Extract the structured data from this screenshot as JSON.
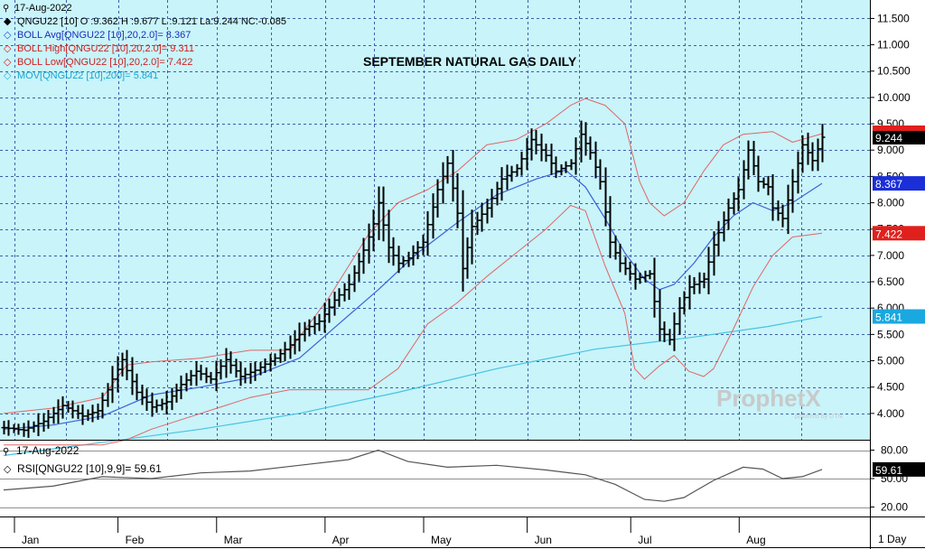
{
  "date_label": "17-Aug-2022",
  "legend": [
    {
      "marker": "◆",
      "marker_color": "#000000",
      "text": "QNGU22 [10] O :9.362 H :9.677 L :9.121 La:9.244 NC:-0.085"
    },
    {
      "marker": "◇",
      "marker_color": "#2f4fd0",
      "text": "BOLL Avg[QNGU22 [10],20,2.0]= 8.367"
    },
    {
      "marker": "◇",
      "marker_color": "#e02020",
      "text": "BOLL High[QNGU22 [10],20,2.0]= 9.311"
    },
    {
      "marker": "◇",
      "marker_color": "#e02020",
      "text": "BOLL Low[QNGU22 [10],20,2.0]= 7.422"
    },
    {
      "marker": "◇",
      "marker_color": "#2fb5d8",
      "text": "MOV[QNGU22 [10],200]= 5.841"
    }
  ],
  "rsi_date_label": "17-Aug-2022",
  "rsi_legend": "RSI[QNGU22 [10],9,9]= 59.61",
  "watermark": {
    "brand": "ProphetX",
    "sub": "powered by DTN"
  },
  "period_label": "1 Day",
  "colors": {
    "panel_bg": "#c8f4fa",
    "grid": "#3f5fa8",
    "price": "#000000",
    "boll_avg": "#3d62d8",
    "boll_band": "#e06666",
    "mov200": "#48c2e0"
  },
  "chart_data": {
    "type": "ohlc",
    "title": "SEPTEMBER NATURAL GAS DAILY",
    "y_ticks": [
      "11.500",
      "11.000",
      "10.500",
      "10.000",
      "9.500",
      "9.000",
      "8.500",
      "8.000",
      "7.500",
      "7.000",
      "6.500",
      "6.000",
      "5.500",
      "5.000",
      "4.500",
      "4.000"
    ],
    "ylim": [
      3.5,
      11.85
    ],
    "x_ticks": [
      "Jan",
      "Feb",
      "Mar",
      "Apr",
      "May",
      "Jun",
      "Jul",
      "Aug"
    ],
    "bar_count": 160,
    "tick_bar_index": [
      0,
      21,
      41,
      63,
      83,
      104,
      125,
      147
    ],
    "badges": [
      {
        "label": "9.244",
        "value": 9.244,
        "color": "#e0201c",
        "text_color": "#ffffff",
        "bg": "#000000"
      },
      {
        "label": "8.367",
        "value": 8.367,
        "color": "#1a2fd8"
      },
      {
        "label": "7.422",
        "value": 7.422,
        "color": "#e0201c"
      },
      {
        "label": "5.841",
        "value": 5.841,
        "color": "#19a8e0"
      }
    ],
    "close_series": [
      [
        0,
        3.73
      ],
      [
        4,
        3.68
      ],
      [
        8,
        3.85
      ],
      [
        12,
        4.15
      ],
      [
        16,
        3.95
      ],
      [
        19,
        4.05
      ],
      [
        22,
        4.65
      ],
      [
        24,
        5.02
      ],
      [
        27,
        4.4
      ],
      [
        30,
        4.12
      ],
      [
        33,
        4.22
      ],
      [
        36,
        4.55
      ],
      [
        39,
        4.8
      ],
      [
        42,
        4.65
      ],
      [
        45,
        5.02
      ],
      [
        48,
        4.7
      ],
      [
        51,
        4.82
      ],
      [
        55,
        5.05
      ],
      [
        58,
        5.3
      ],
      [
        61,
        5.6
      ],
      [
        64,
        5.75
      ],
      [
        67,
        6.15
      ],
      [
        70,
        6.45
      ],
      [
        73,
        7.1
      ],
      [
        75,
        7.6
      ],
      [
        76,
        8.0
      ],
      [
        78,
        7.15
      ],
      [
        80,
        6.85
      ],
      [
        82,
        6.95
      ],
      [
        85,
        7.25
      ],
      [
        88,
        8.25
      ],
      [
        90,
        8.75
      ],
      [
        92,
        7.8
      ],
      [
        93,
        6.75
      ],
      [
        95,
        7.55
      ],
      [
        98,
        7.9
      ],
      [
        101,
        8.45
      ],
      [
        104,
        8.65
      ],
      [
        107,
        9.2
      ],
      [
        110,
        8.9
      ],
      [
        112,
        8.6
      ],
      [
        115,
        8.75
      ],
      [
        117,
        9.3
      ],
      [
        119,
        8.95
      ],
      [
        121,
        8.4
      ],
      [
        123,
        7.25
      ],
      [
        125,
        6.85
      ],
      [
        128,
        6.55
      ],
      [
        131,
        6.65
      ],
      [
        133,
        5.6
      ],
      [
        135,
        5.4
      ],
      [
        137,
        6.0
      ],
      [
        139,
        6.4
      ],
      [
        142,
        6.55
      ],
      [
        144,
        7.2
      ],
      [
        147,
        7.9
      ],
      [
        149,
        8.25
      ],
      [
        151,
        9.0
      ],
      [
        153,
        8.4
      ],
      [
        155,
        8.3
      ],
      [
        156,
        7.9
      ],
      [
        158,
        7.7
      ],
      [
        160,
        8.4
      ],
      [
        162,
        9.1
      ],
      [
        164,
        8.8
      ],
      [
        166,
        9.244
      ]
    ],
    "boll_avg": [
      [
        0,
        3.7
      ],
      [
        10,
        3.78
      ],
      [
        20,
        3.95
      ],
      [
        25,
        4.15
      ],
      [
        30,
        4.35
      ],
      [
        40,
        4.5
      ],
      [
        50,
        4.68
      ],
      [
        60,
        5.05
      ],
      [
        68,
        5.7
      ],
      [
        76,
        6.35
      ],
      [
        84,
        7.05
      ],
      [
        92,
        7.62
      ],
      [
        100,
        8.15
      ],
      [
        108,
        8.45
      ],
      [
        114,
        8.62
      ],
      [
        118,
        8.3
      ],
      [
        122,
        7.7
      ],
      [
        126,
        7.05
      ],
      [
        130,
        6.55
      ],
      [
        133,
        6.35
      ],
      [
        136,
        6.45
      ],
      [
        140,
        6.85
      ],
      [
        144,
        7.35
      ],
      [
        148,
        7.75
      ],
      [
        152,
        8.0
      ],
      [
        156,
        7.85
      ],
      [
        160,
        8.0
      ],
      [
        166,
        8.367
      ]
    ],
    "boll_high": [
      [
        0,
        4.0
      ],
      [
        10,
        4.1
      ],
      [
        20,
        4.3
      ],
      [
        25,
        4.92
      ],
      [
        30,
        4.98
      ],
      [
        40,
        5.05
      ],
      [
        50,
        5.2
      ],
      [
        58,
        5.2
      ],
      [
        66,
        6.2
      ],
      [
        74,
        7.4
      ],
      [
        80,
        8.0
      ],
      [
        86,
        8.25
      ],
      [
        92,
        8.6
      ],
      [
        98,
        9.1
      ],
      [
        104,
        9.2
      ],
      [
        110,
        9.5
      ],
      [
        115,
        9.85
      ],
      [
        118,
        9.98
      ],
      [
        122,
        9.85
      ],
      [
        126,
        9.5
      ],
      [
        129,
        8.4
      ],
      [
        131,
        8.0
      ],
      [
        134,
        7.75
      ],
      [
        138,
        8.0
      ],
      [
        142,
        8.6
      ],
      [
        146,
        9.1
      ],
      [
        150,
        9.3
      ],
      [
        156,
        9.35
      ],
      [
        160,
        9.15
      ],
      [
        166,
        9.311
      ]
    ],
    "boll_low": [
      [
        0,
        3.4
      ],
      [
        10,
        3.4
      ],
      [
        20,
        3.4
      ],
      [
        25,
        3.5
      ],
      [
        30,
        3.7
      ],
      [
        40,
        4.0
      ],
      [
        50,
        4.3
      ],
      [
        58,
        4.45
      ],
      [
        66,
        4.45
      ],
      [
        74,
        4.45
      ],
      [
        80,
        4.85
      ],
      [
        86,
        5.7
      ],
      [
        92,
        6.1
      ],
      [
        98,
        6.6
      ],
      [
        104,
        7.05
      ],
      [
        110,
        7.5
      ],
      [
        115,
        7.95
      ],
      [
        118,
        7.85
      ],
      [
        122,
        6.8
      ],
      [
        126,
        5.9
      ],
      [
        128,
        4.85
      ],
      [
        130,
        4.65
      ],
      [
        133,
        4.9
      ],
      [
        136,
        5.1
      ],
      [
        139,
        4.8
      ],
      [
        142,
        4.7
      ],
      [
        144,
        4.85
      ],
      [
        148,
        5.6
      ],
      [
        152,
        6.4
      ],
      [
        156,
        7.0
      ],
      [
        160,
        7.35
      ],
      [
        166,
        7.422
      ]
    ],
    "mov200": [
      [
        0,
        3.2
      ],
      [
        20,
        3.45
      ],
      [
        40,
        3.7
      ],
      [
        60,
        4.0
      ],
      [
        80,
        4.4
      ],
      [
        100,
        4.85
      ],
      [
        120,
        5.22
      ],
      [
        140,
        5.45
      ],
      [
        155,
        5.65
      ],
      [
        166,
        5.841
      ]
    ],
    "rsi": {
      "y_ticks": [
        "80.00",
        "50.00",
        "20.00"
      ],
      "ylim": [
        10,
        90
      ],
      "last_label": "59.61",
      "series": [
        [
          0,
          38
        ],
        [
          10,
          42
        ],
        [
          20,
          52
        ],
        [
          30,
          50
        ],
        [
          40,
          56
        ],
        [
          50,
          58
        ],
        [
          60,
          64
        ],
        [
          70,
          70
        ],
        [
          76,
          80
        ],
        [
          82,
          68
        ],
        [
          90,
          62
        ],
        [
          100,
          64
        ],
        [
          110,
          59
        ],
        [
          118,
          54
        ],
        [
          124,
          44
        ],
        [
          130,
          28
        ],
        [
          134,
          26
        ],
        [
          138,
          30
        ],
        [
          144,
          48
        ],
        [
          150,
          62
        ],
        [
          154,
          60
        ],
        [
          158,
          50
        ],
        [
          162,
          52
        ],
        [
          166,
          59.61
        ]
      ]
    }
  }
}
